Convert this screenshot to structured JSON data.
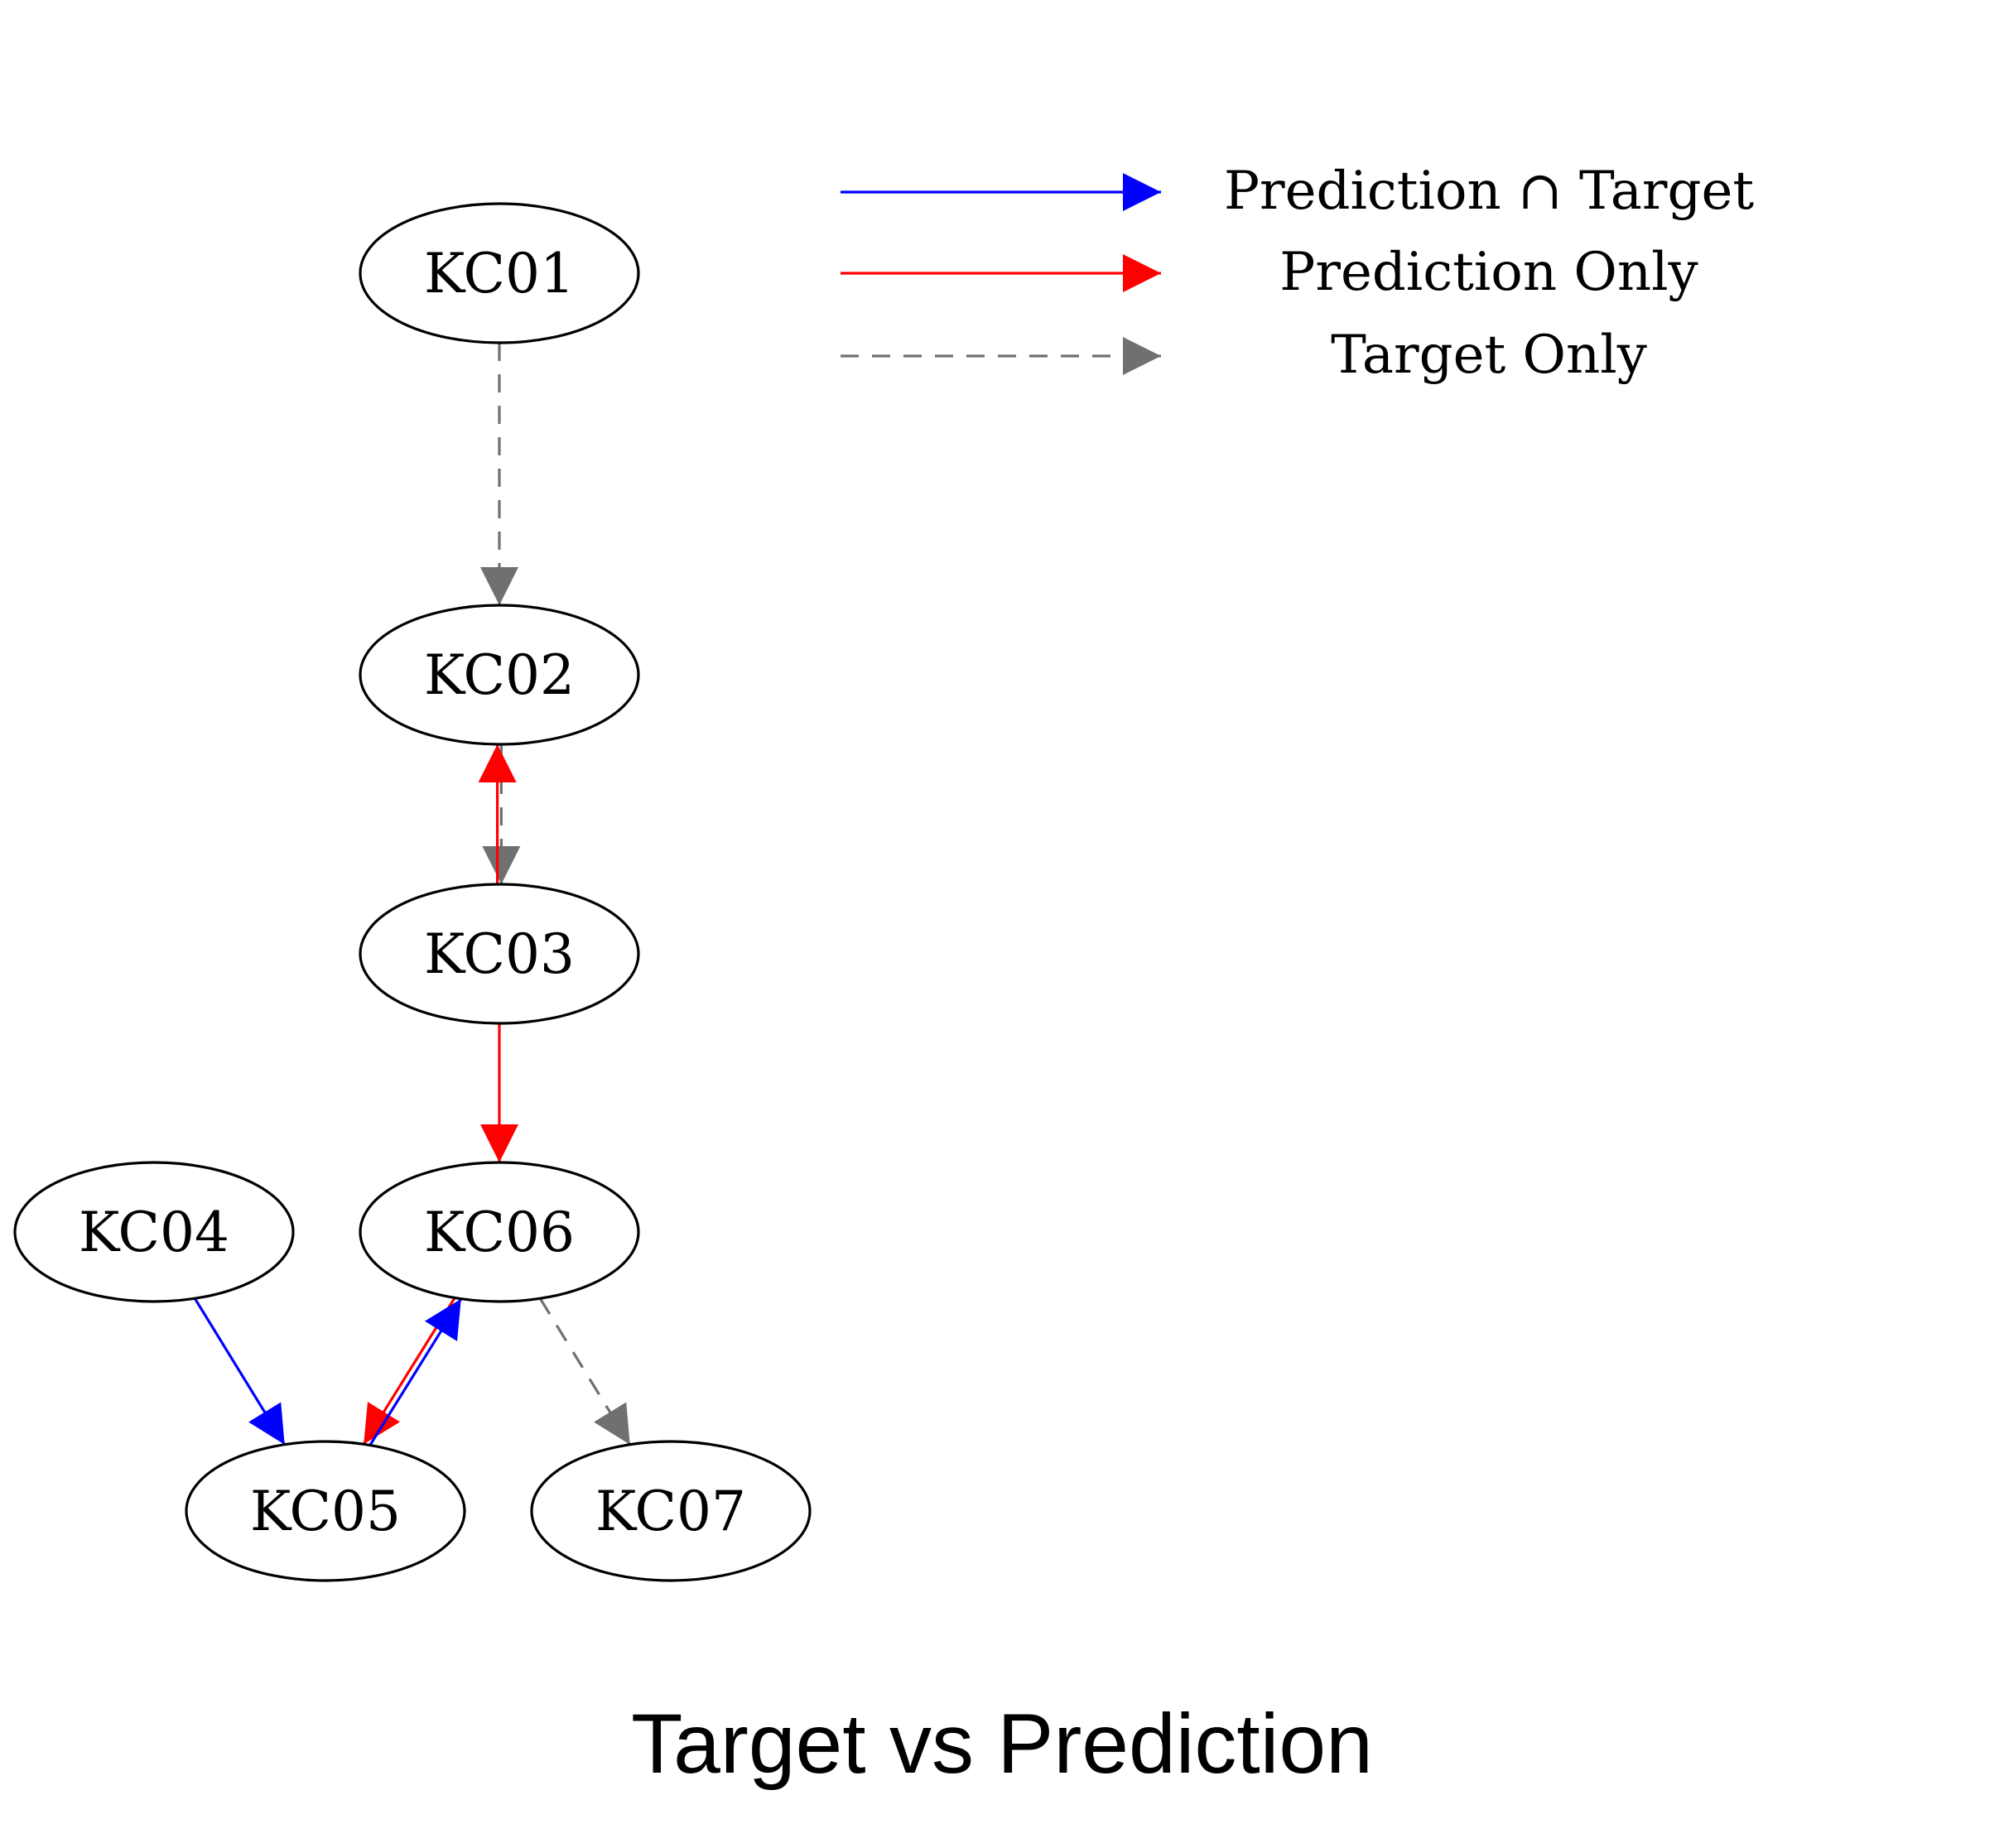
{
  "nodes": [
    {
      "id": "KC01",
      "label": "KC01"
    },
    {
      "id": "KC02",
      "label": "KC02"
    },
    {
      "id": "KC03",
      "label": "KC03"
    },
    {
      "id": "KC04",
      "label": "KC04"
    },
    {
      "id": "KC05",
      "label": "KC05"
    },
    {
      "id": "KC06",
      "label": "KC06"
    },
    {
      "id": "KC07",
      "label": "KC07"
    }
  ],
  "edges": [
    {
      "from": "KC01",
      "to": "KC02",
      "kind": "target_only"
    },
    {
      "from": "KC02",
      "to": "KC03",
      "kind": "target_only"
    },
    {
      "from": "KC03",
      "to": "KC02",
      "kind": "prediction_only"
    },
    {
      "from": "KC03",
      "to": "KC06",
      "kind": "prediction_only"
    },
    {
      "from": "KC04",
      "to": "KC05",
      "kind": "both"
    },
    {
      "from": "KC06",
      "to": "KC05",
      "kind": "prediction_only"
    },
    {
      "from": "KC05",
      "to": "KC06",
      "kind": "both"
    },
    {
      "from": "KC06",
      "to": "KC07",
      "kind": "target_only"
    }
  ],
  "legend": [
    {
      "kind": "both",
      "label": "Prediction ∩ Target",
      "color": "#0000ff",
      "style": "solid"
    },
    {
      "kind": "prediction_only",
      "label": "Prediction Only",
      "color": "#ff0000",
      "style": "solid"
    },
    {
      "kind": "target_only",
      "label": "Target Only",
      "color": "#707070",
      "style": "dashed"
    }
  ],
  "caption": "Target vs Prediction"
}
